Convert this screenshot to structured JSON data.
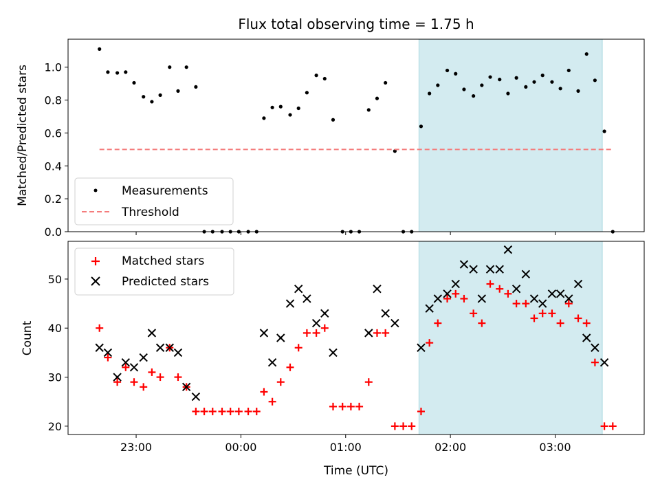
{
  "chart_data": [
    {
      "type": "scatter",
      "title": "Flux total observing time = 1.75 h",
      "xlabel": "",
      "ylabel": "Matched/Predicted stars",
      "ylim": [
        0,
        1.17
      ],
      "yticks": [
        "0.0",
        "0.2",
        "0.4",
        "0.6",
        "0.8",
        "1.0"
      ],
      "x_unit": "hours relative to 00:00 UTC",
      "xlim": [
        -1.65,
        3.85
      ],
      "legend_position": "lower-left",
      "observing_window": [
        1.7,
        3.45
      ],
      "threshold": 0.5,
      "series": [
        {
          "name": "Measurements",
          "marker": "dot",
          "color": "#000000",
          "points": [
            [
              -1.35,
              1.11
            ],
            [
              -1.27,
              0.97
            ],
            [
              -1.18,
              0.965
            ],
            [
              -1.1,
              0.97
            ],
            [
              -1.02,
              0.905
            ],
            [
              -0.93,
              0.82
            ],
            [
              -0.85,
              0.79
            ],
            [
              -0.77,
              0.83
            ],
            [
              -0.68,
              1.0
            ],
            [
              -0.6,
              0.855
            ],
            [
              -0.52,
              1.0
            ],
            [
              -0.43,
              0.88
            ],
            [
              -0.35,
              0.0
            ],
            [
              -0.27,
              0.0
            ],
            [
              -0.18,
              0.0
            ],
            [
              -0.1,
              0.0
            ],
            [
              -0.02,
              0.0
            ],
            [
              0.07,
              0.0
            ],
            [
              0.15,
              0.0
            ],
            [
              0.22,
              0.69
            ],
            [
              0.3,
              0.755
            ],
            [
              0.38,
              0.76
            ],
            [
              0.47,
              0.71
            ],
            [
              0.55,
              0.75
            ],
            [
              0.63,
              0.845
            ],
            [
              0.72,
              0.95
            ],
            [
              0.8,
              0.93
            ],
            [
              0.88,
              0.68
            ],
            [
              0.97,
              0.0
            ],
            [
              1.05,
              0.0
            ],
            [
              1.13,
              0.0
            ],
            [
              1.22,
              0.74
            ],
            [
              1.3,
              0.81
            ],
            [
              1.38,
              0.905
            ],
            [
              1.47,
              0.49
            ],
            [
              1.55,
              0.0
            ],
            [
              1.63,
              0.0
            ],
            [
              1.72,
              0.64
            ],
            [
              1.8,
              0.84
            ],
            [
              1.88,
              0.89
            ],
            [
              1.97,
              0.98
            ],
            [
              2.05,
              0.96
            ],
            [
              2.13,
              0.865
            ],
            [
              2.22,
              0.825
            ],
            [
              2.3,
              0.89
            ],
            [
              2.38,
              0.94
            ],
            [
              2.47,
              0.925
            ],
            [
              2.55,
              0.84
            ],
            [
              2.63,
              0.935
            ],
            [
              2.72,
              0.88
            ],
            [
              2.8,
              0.91
            ],
            [
              2.88,
              0.95
            ],
            [
              2.97,
              0.91
            ],
            [
              3.05,
              0.87
            ],
            [
              3.13,
              0.98
            ],
            [
              3.22,
              0.855
            ],
            [
              3.3,
              1.08
            ],
            [
              3.38,
              0.92
            ],
            [
              3.47,
              0.61
            ],
            [
              3.55,
              0.0
            ]
          ]
        },
        {
          "name": "Threshold",
          "style": "dashed",
          "color": "#f47c7c",
          "x_range": [
            -1.35,
            3.55
          ],
          "value": 0.5
        }
      ]
    },
    {
      "type": "scatter",
      "title": "",
      "xlabel": "Time (UTC)",
      "ylabel": "Count",
      "ylim": [
        18.3,
        57.7
      ],
      "yticks": [
        20,
        30,
        40,
        50
      ],
      "x_unit": "hours relative to 00:00 UTC",
      "xlim": [
        -1.65,
        3.85
      ],
      "xticks": [
        {
          "x": -1.0,
          "label": "23:00"
        },
        {
          "x": 0.0,
          "label": "00:00"
        },
        {
          "x": 1.0,
          "label": "01:00"
        },
        {
          "x": 2.0,
          "label": "02:00"
        },
        {
          "x": 3.0,
          "label": "03:00"
        }
      ],
      "legend_position": "upper-left",
      "observing_window": [
        1.7,
        3.45
      ],
      "series": [
        {
          "name": "Matched stars",
          "marker": "plus",
          "color": "#ff0000",
          "points": [
            [
              -1.35,
              40
            ],
            [
              -1.27,
              34
            ],
            [
              -1.18,
              29
            ],
            [
              -1.1,
              32
            ],
            [
              -1.02,
              29
            ],
            [
              -0.93,
              28
            ],
            [
              -0.85,
              31
            ],
            [
              -0.77,
              30
            ],
            [
              -0.68,
              36
            ],
            [
              -0.6,
              30
            ],
            [
              -0.52,
              28
            ],
            [
              -0.43,
              23
            ],
            [
              -0.35,
              23
            ],
            [
              -0.27,
              23
            ],
            [
              -0.18,
              23
            ],
            [
              -0.1,
              23
            ],
            [
              -0.02,
              23
            ],
            [
              0.07,
              23
            ],
            [
              0.15,
              23
            ],
            [
              0.22,
              27
            ],
            [
              0.3,
              25
            ],
            [
              0.38,
              29
            ],
            [
              0.47,
              32
            ],
            [
              0.55,
              36
            ],
            [
              0.63,
              39
            ],
            [
              0.72,
              39
            ],
            [
              0.8,
              40
            ],
            [
              0.88,
              24
            ],
            [
              0.97,
              24
            ],
            [
              1.05,
              24
            ],
            [
              1.13,
              24
            ],
            [
              1.22,
              29
            ],
            [
              1.3,
              39
            ],
            [
              1.38,
              39
            ],
            [
              1.47,
              20
            ],
            [
              1.55,
              20
            ],
            [
              1.63,
              20
            ],
            [
              1.72,
              23
            ],
            [
              1.8,
              37
            ],
            [
              1.88,
              41
            ],
            [
              1.97,
              46
            ],
            [
              2.05,
              47
            ],
            [
              2.13,
              46
            ],
            [
              2.22,
              43
            ],
            [
              2.3,
              41
            ],
            [
              2.38,
              49
            ],
            [
              2.47,
              48
            ],
            [
              2.55,
              47
            ],
            [
              2.63,
              45
            ],
            [
              2.72,
              45
            ],
            [
              2.8,
              42
            ],
            [
              2.88,
              43
            ],
            [
              2.97,
              43
            ],
            [
              3.05,
              41
            ],
            [
              3.13,
              45
            ],
            [
              3.22,
              42
            ],
            [
              3.3,
              41
            ],
            [
              3.38,
              33
            ],
            [
              3.47,
              20
            ],
            [
              3.55,
              20
            ]
          ]
        },
        {
          "name": "Predicted stars",
          "marker": "x",
          "color": "#000000",
          "points": [
            [
              -1.35,
              36
            ],
            [
              -1.27,
              35
            ],
            [
              -1.18,
              30
            ],
            [
              -1.1,
              33
            ],
            [
              -1.02,
              32
            ],
            [
              -0.93,
              34
            ],
            [
              -0.85,
              39
            ],
            [
              -0.77,
              36
            ],
            [
              -0.68,
              36
            ],
            [
              -0.6,
              35
            ],
            [
              -0.52,
              28
            ],
            [
              -0.43,
              26
            ],
            [
              0.22,
              39
            ],
            [
              0.3,
              33
            ],
            [
              0.38,
              38
            ],
            [
              0.47,
              45
            ],
            [
              0.55,
              48
            ],
            [
              0.63,
              46
            ],
            [
              0.72,
              41
            ],
            [
              0.8,
              43
            ],
            [
              0.88,
              35
            ],
            [
              1.22,
              39
            ],
            [
              1.3,
              48
            ],
            [
              1.38,
              43
            ],
            [
              1.47,
              41
            ],
            [
              1.72,
              36
            ],
            [
              1.8,
              44
            ],
            [
              1.88,
              46
            ],
            [
              1.97,
              47
            ],
            [
              2.05,
              49
            ],
            [
              2.13,
              53
            ],
            [
              2.22,
              52
            ],
            [
              2.3,
              46
            ],
            [
              2.38,
              52
            ],
            [
              2.47,
              52
            ],
            [
              2.55,
              56
            ],
            [
              2.63,
              48
            ],
            [
              2.72,
              51
            ],
            [
              2.8,
              46
            ],
            [
              2.88,
              45
            ],
            [
              2.97,
              47
            ],
            [
              3.05,
              47
            ],
            [
              3.13,
              46
            ],
            [
              3.22,
              49
            ],
            [
              3.3,
              38
            ],
            [
              3.38,
              36
            ],
            [
              3.47,
              33
            ]
          ]
        }
      ]
    }
  ],
  "colors": {
    "observing_window": "#d3ebf0",
    "observing_window_edge": "#a9d8e0",
    "threshold": "#f47c7c",
    "matched": "#ff0000",
    "predicted": "#000000",
    "measurements": "#000000"
  }
}
